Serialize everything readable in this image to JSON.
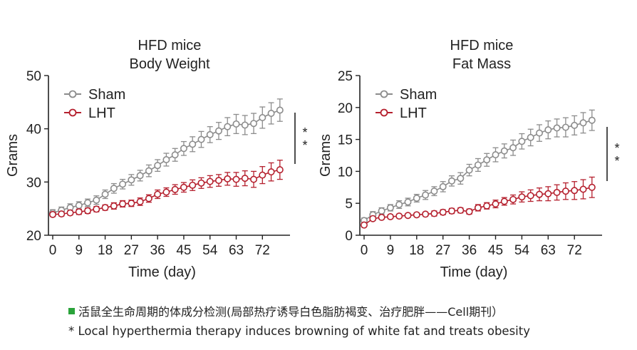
{
  "chart_data": [
    {
      "type": "line",
      "title": "HFD mice",
      "subtitle": "Body Weight",
      "xlabel": "Time (day)",
      "ylabel": "Grams",
      "xlim": [
        0,
        80
      ],
      "ylim": [
        20,
        50
      ],
      "xticks": [
        "0",
        "9",
        "18",
        "27",
        "36",
        "45",
        "54",
        "63",
        "72"
      ],
      "yticks": [
        "20",
        "30",
        "40",
        "50"
      ],
      "legend_position": "top-left",
      "significance": "* *",
      "x": [
        0,
        3,
        6,
        9,
        12,
        15,
        18,
        21,
        24,
        27,
        30,
        33,
        36,
        39,
        42,
        45,
        48,
        51,
        54,
        57,
        60,
        63,
        66,
        69,
        72,
        75,
        78
      ],
      "series": [
        {
          "name": "Sham",
          "color": "#8c8c8c",
          "values": [
            24.2,
            24.7,
            25.2,
            25.6,
            26.1,
            26.6,
            27.7,
            28.8,
            29.6,
            30.4,
            31.2,
            32.1,
            33.1,
            34.2,
            35.1,
            36.3,
            37.1,
            38.0,
            38.9,
            39.6,
            40.4,
            40.9,
            40.7,
            41.0,
            42.1,
            42.9,
            43.5
          ],
          "errors": [
            0.6,
            0.6,
            0.7,
            0.7,
            0.7,
            0.8,
            0.8,
            0.9,
            0.9,
            1.0,
            1.0,
            1.1,
            1.1,
            1.2,
            1.2,
            1.3,
            1.4,
            1.5,
            1.5,
            1.6,
            1.7,
            1.8,
            1.8,
            1.9,
            2.0,
            2.0,
            2.1
          ]
        },
        {
          "name": "LHT",
          "color": "#b5202e",
          "values": [
            23.9,
            24.0,
            24.2,
            24.4,
            24.6,
            24.9,
            25.2,
            25.5,
            25.9,
            26.0,
            26.3,
            26.9,
            27.7,
            28.1,
            28.6,
            29.0,
            29.4,
            29.8,
            30.1,
            30.3,
            30.6,
            30.5,
            30.7,
            30.5,
            31.3,
            31.9,
            32.3
          ],
          "errors": [
            0.4,
            0.4,
            0.4,
            0.5,
            0.5,
            0.5,
            0.5,
            0.6,
            0.6,
            0.6,
            0.7,
            0.7,
            0.8,
            0.8,
            0.9,
            0.9,
            1.0,
            1.0,
            1.1,
            1.1,
            1.2,
            1.3,
            1.4,
            1.5,
            1.6,
            1.7,
            1.8
          ]
        }
      ]
    },
    {
      "type": "line",
      "title": "HFD mice",
      "subtitle": "Fat Mass",
      "xlabel": "Time (day)",
      "ylabel": "Grams",
      "xlim": [
        0,
        80
      ],
      "ylim": [
        0,
        25
      ],
      "xticks": [
        "0",
        "9",
        "18",
        "27",
        "36",
        "45",
        "54",
        "63",
        "72"
      ],
      "yticks": [
        "0",
        "5",
        "10",
        "15",
        "20",
        "25"
      ],
      "legend_position": "top-left",
      "significance": "* *",
      "x": [
        0,
        3,
        6,
        9,
        12,
        15,
        18,
        21,
        24,
        27,
        30,
        33,
        36,
        39,
        42,
        45,
        48,
        51,
        54,
        57,
        60,
        63,
        66,
        69,
        72,
        75,
        78
      ],
      "series": [
        {
          "name": "Sham",
          "color": "#8c8c8c",
          "values": [
            2.3,
            3.2,
            3.8,
            4.3,
            4.8,
            5.2,
            5.8,
            6.3,
            6.9,
            7.6,
            8.5,
            8.9,
            10.2,
            11.0,
            11.8,
            12.6,
            13.2,
            13.7,
            14.7,
            15.3,
            16.0,
            16.5,
            16.8,
            16.9,
            17.2,
            17.6,
            18.0
          ],
          "errors": [
            0.4,
            0.5,
            0.5,
            0.5,
            0.6,
            0.6,
            0.6,
            0.7,
            0.7,
            0.8,
            0.8,
            0.9,
            0.9,
            1.0,
            1.0,
            1.1,
            1.1,
            1.2,
            1.2,
            1.3,
            1.3,
            1.4,
            1.4,
            1.5,
            1.5,
            1.6,
            1.6
          ]
        },
        {
          "name": "LHT",
          "color": "#b5202e",
          "values": [
            1.6,
            2.6,
            2.8,
            2.9,
            3.0,
            3.1,
            3.2,
            3.3,
            3.4,
            3.6,
            3.8,
            3.9,
            3.7,
            4.3,
            4.6,
            4.9,
            5.3,
            5.6,
            6.0,
            6.2,
            6.4,
            6.5,
            6.7,
            6.9,
            7.0,
            7.2,
            7.5
          ],
          "errors": [
            0.3,
            0.3,
            0.3,
            0.3,
            0.3,
            0.3,
            0.3,
            0.3,
            0.4,
            0.4,
            0.4,
            0.4,
            0.4,
            0.5,
            0.5,
            0.6,
            0.6,
            0.7,
            0.8,
            0.9,
            1.0,
            1.1,
            1.2,
            1.3,
            1.4,
            1.5,
            1.6
          ]
        }
      ]
    }
  ],
  "captions": {
    "line1": "活鼠全生命周期的体成分检测(局部热疗诱导白色脂肪褐变、治疗肥胖——Cell期刊）",
    "line2": "* Local hyperthermia therapy induces browning of white fat and  treats obesity"
  }
}
